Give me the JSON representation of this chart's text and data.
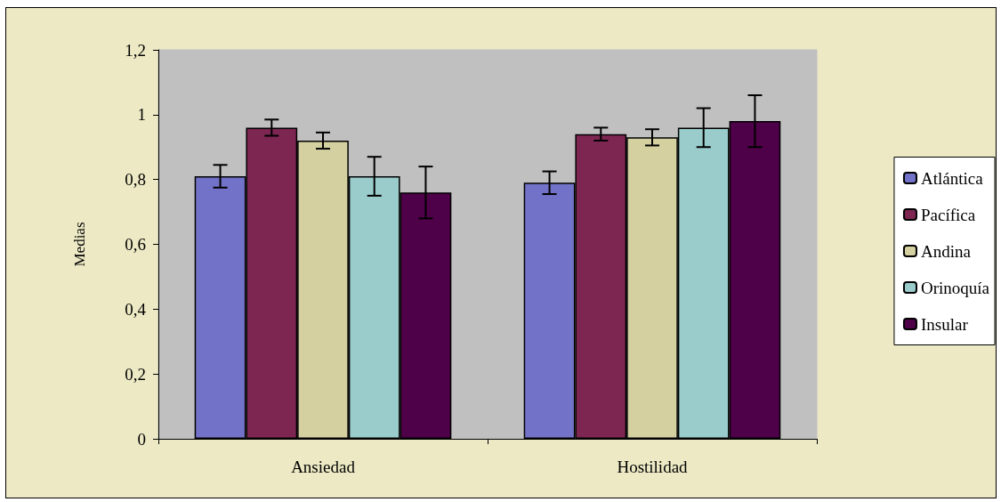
{
  "chart_data": {
    "type": "bar",
    "ylabel": "Medias",
    "categories": [
      "Ansiedad",
      "Hostilidad"
    ],
    "series": [
      {
        "name": "Atlántica",
        "color": "#7272c8",
        "values": [
          0.81,
          0.79
        ],
        "errors": [
          0.035,
          0.035
        ]
      },
      {
        "name": "Pacífica",
        "color": "#7e2652",
        "values": [
          0.96,
          0.94
        ],
        "errors": [
          0.025,
          0.02
        ]
      },
      {
        "name": "Andina",
        "color": "#d4d0a0",
        "values": [
          0.92,
          0.93
        ],
        "errors": [
          0.025,
          0.025
        ]
      },
      {
        "name": "Orinoquía",
        "color": "#9acccc",
        "values": [
          0.81,
          0.96
        ],
        "errors": [
          0.06,
          0.06
        ]
      },
      {
        "name": "Insular",
        "color": "#4e0048",
        "values": [
          0.76,
          0.98
        ],
        "errors": [
          0.08,
          0.08
        ]
      }
    ],
    "ylim": [
      0,
      1.2
    ],
    "yticks": [
      0,
      {
        "value": 0.2,
        "label": "0,2"
      },
      {
        "value": 0.4,
        "label": "0,4"
      },
      {
        "value": 0.6,
        "label": "0,6"
      },
      {
        "value": 0.8,
        "label": "0,8"
      },
      1,
      {
        "value": 1.2,
        "label": "1,2"
      }
    ],
    "grid": false,
    "legend": "right"
  }
}
